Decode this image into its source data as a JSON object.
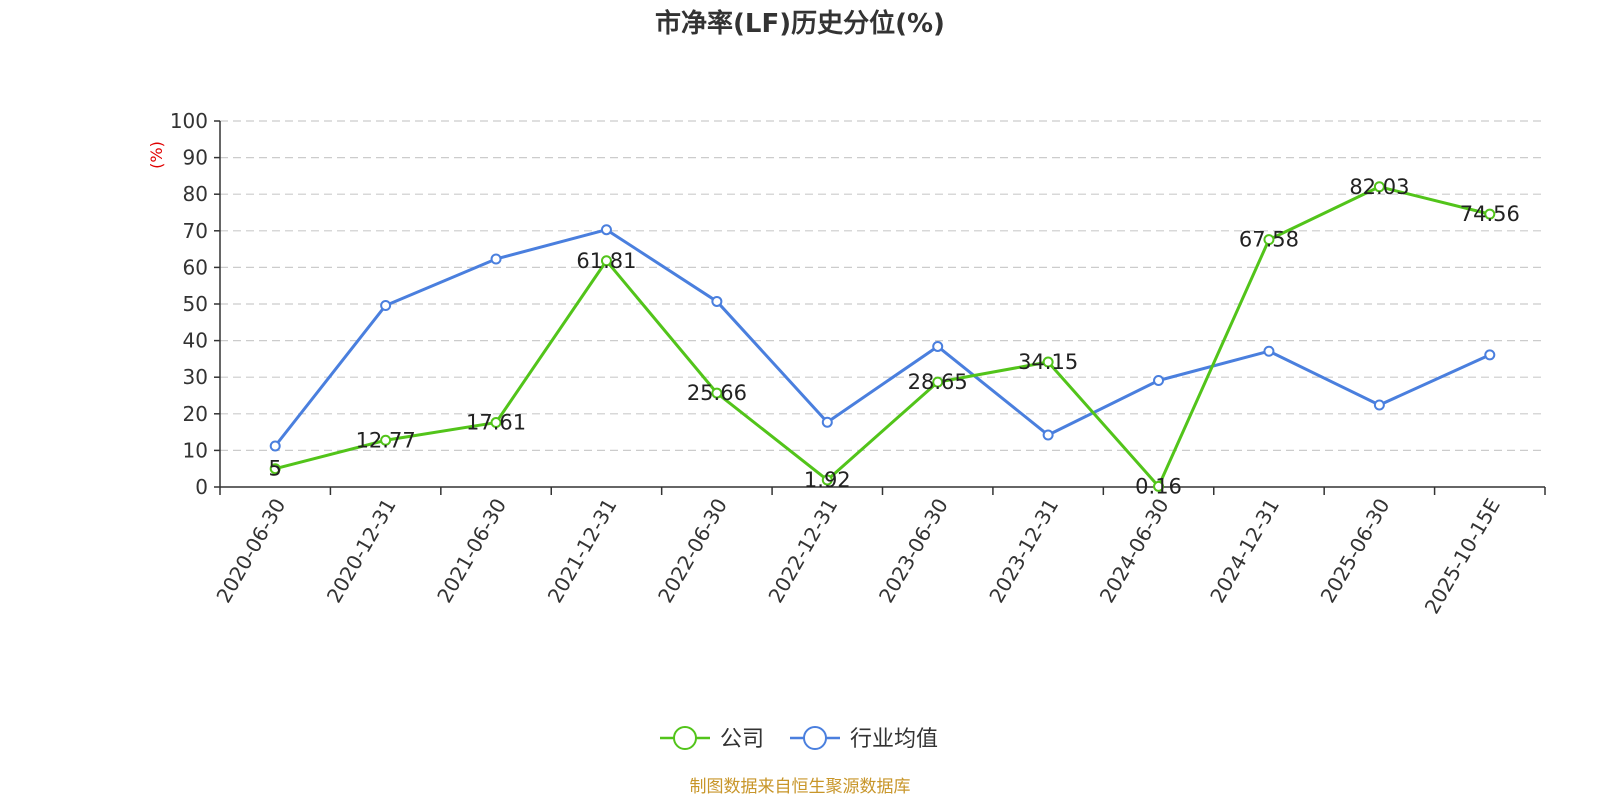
{
  "chart_data": {
    "type": "line",
    "title": "市净率(LF)历史分位(%)",
    "ylabel": "(%)",
    "ylim": [
      0,
      100
    ],
    "yticks": [
      0,
      10,
      20,
      30,
      40,
      50,
      60,
      70,
      80,
      90,
      100
    ],
    "grid": true,
    "legend_position": "bottom-center",
    "categories": [
      "2020-06-30",
      "2020-12-31",
      "2021-06-30",
      "2021-12-31",
      "2022-06-30",
      "2022-12-31",
      "2023-06-30",
      "2023-12-31",
      "2024-06-30",
      "2024-12-31",
      "2025-06-30",
      "2025-10-15E"
    ],
    "series": [
      {
        "name": "公司",
        "color": "#52c41a",
        "show_labels": true,
        "values": [
          5,
          12.77,
          17.61,
          61.81,
          25.66,
          1.92,
          28.65,
          34.15,
          0.16,
          67.58,
          82.03,
          74.56
        ]
      },
      {
        "name": "行业均值",
        "color": "#4a7fde",
        "show_labels": false,
        "values": [
          11.2,
          49.6,
          62.3,
          70.3,
          50.7,
          17.7,
          38.4,
          14.2,
          29.1,
          37.1,
          22.4,
          36.1
        ]
      }
    ],
    "source": "制图数据来自恒生聚源数据库",
    "source_color": "#c8962a",
    "ylabel_color": "#e00000"
  }
}
